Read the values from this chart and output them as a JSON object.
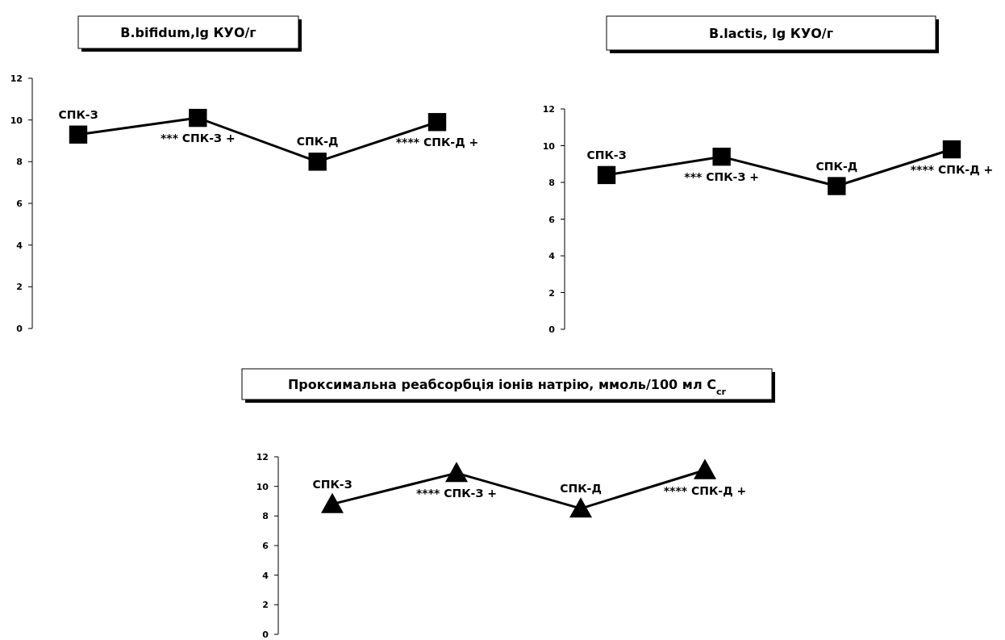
{
  "chart_data": [
    {
      "type": "line",
      "title": "B.bifidum,lg КУО/г",
      "categories": [
        "СПК-З",
        "*** СПК-З +",
        "СПК-Д",
        "**** СПК-Д +"
      ],
      "values": [
        9.3,
        10.1,
        8.0,
        9.9
      ],
      "color": "#000000",
      "marker": "square",
      "line_style": "solid",
      "ylim": [
        0,
        12
      ],
      "yticks": [
        0,
        2,
        4,
        6,
        8,
        10,
        12
      ]
    },
    {
      "type": "line",
      "title": "B.lactis, lg КУО/г",
      "categories": [
        "СПК-З",
        "*** СПК-З +",
        "СПК-Д",
        "**** СПК-Д +"
      ],
      "values": [
        8.4,
        9.4,
        7.8,
        9.8
      ],
      "color": "#000000",
      "marker": "square",
      "line_style": "solid",
      "ylim": [
        0,
        12
      ],
      "yticks": [
        0,
        2,
        4,
        6,
        8,
        10,
        12
      ]
    },
    {
      "type": "line",
      "title": "Проксимальна реабсорбція іонів натрію, ммоль/100 мл C$_{cr}$",
      "categories": [
        "СПК-З",
        "**** СПК-З +",
        "СПК-Д",
        "**** СПК-Д +"
      ],
      "values": [
        8.8,
        10.9,
        8.5,
        11.1
      ],
      "color": "#000000",
      "marker": "triangle",
      "line_style": "solid",
      "ylim": [
        0,
        12
      ],
      "yticks": [
        0,
        2,
        4,
        6,
        8,
        10,
        12
      ]
    }
  ]
}
